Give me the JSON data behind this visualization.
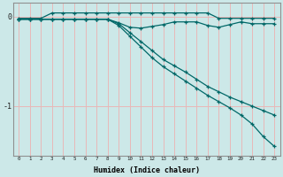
{
  "xlabel": "Humidex (Indice chaleur)",
  "bg_color": "#cce8e8",
  "grid_color": "#e8b8b8",
  "line_color": "#006868",
  "xlim": [
    -0.5,
    23.5
  ],
  "ylim": [
    -1.55,
    0.15
  ],
  "yticks": [
    0,
    -1
  ],
  "xticks": [
    0,
    1,
    2,
    3,
    4,
    5,
    6,
    7,
    8,
    9,
    10,
    11,
    12,
    13,
    14,
    15,
    16,
    17,
    18,
    19,
    20,
    21,
    22,
    23
  ],
  "series": [
    {
      "x": [
        0,
        1,
        2,
        3,
        4,
        5,
        6,
        7,
        8,
        9,
        10,
        11,
        12,
        13,
        14,
        15,
        16,
        17,
        18,
        19,
        20,
        21,
        22,
        23
      ],
      "y": [
        -0.02,
        -0.02,
        -0.02,
        0.04,
        0.04,
        0.04,
        0.04,
        0.04,
        0.04,
        0.04,
        0.04,
        0.04,
        0.04,
        0.04,
        0.04,
        0.04,
        0.04,
        0.04,
        -0.02,
        -0.02,
        -0.02,
        -0.02,
        -0.02,
        -0.02
      ]
    },
    {
      "x": [
        0,
        1,
        2,
        3,
        4,
        5,
        6,
        7,
        8,
        9,
        10,
        11,
        12,
        13,
        14,
        15,
        16,
        17,
        18,
        19,
        20,
        21,
        22,
        23
      ],
      "y": [
        -0.03,
        -0.03,
        -0.03,
        -0.03,
        -0.03,
        -0.03,
        -0.03,
        -0.03,
        -0.03,
        -0.07,
        -0.12,
        -0.13,
        -0.11,
        -0.09,
        -0.06,
        -0.06,
        -0.06,
        -0.1,
        -0.12,
        -0.09,
        -0.06,
        -0.08,
        -0.08,
        -0.08
      ]
    },
    {
      "x": [
        0,
        1,
        2,
        3,
        4,
        5,
        6,
        7,
        8,
        9,
        10,
        11,
        12,
        13,
        14,
        15,
        16,
        17,
        18,
        19,
        20,
        21,
        22,
        23
      ],
      "y": [
        -0.03,
        -0.03,
        -0.03,
        -0.03,
        -0.03,
        -0.03,
        -0.03,
        -0.03,
        -0.03,
        -0.08,
        -0.18,
        -0.28,
        -0.38,
        -0.48,
        -0.55,
        -0.62,
        -0.7,
        -0.78,
        -0.84,
        -0.9,
        -0.95,
        -1.0,
        -1.05,
        -1.1
      ]
    },
    {
      "x": [
        0,
        1,
        2,
        3,
        4,
        5,
        6,
        7,
        8,
        9,
        10,
        11,
        12,
        13,
        14,
        15,
        16,
        17,
        18,
        19,
        20,
        21,
        22,
        23
      ],
      "y": [
        -0.03,
        -0.03,
        -0.03,
        -0.03,
        -0.03,
        -0.03,
        -0.03,
        -0.03,
        -0.03,
        -0.1,
        -0.22,
        -0.34,
        -0.46,
        -0.56,
        -0.64,
        -0.72,
        -0.8,
        -0.88,
        -0.95,
        -1.02,
        -1.1,
        -1.2,
        -1.34,
        -1.45
      ]
    }
  ]
}
